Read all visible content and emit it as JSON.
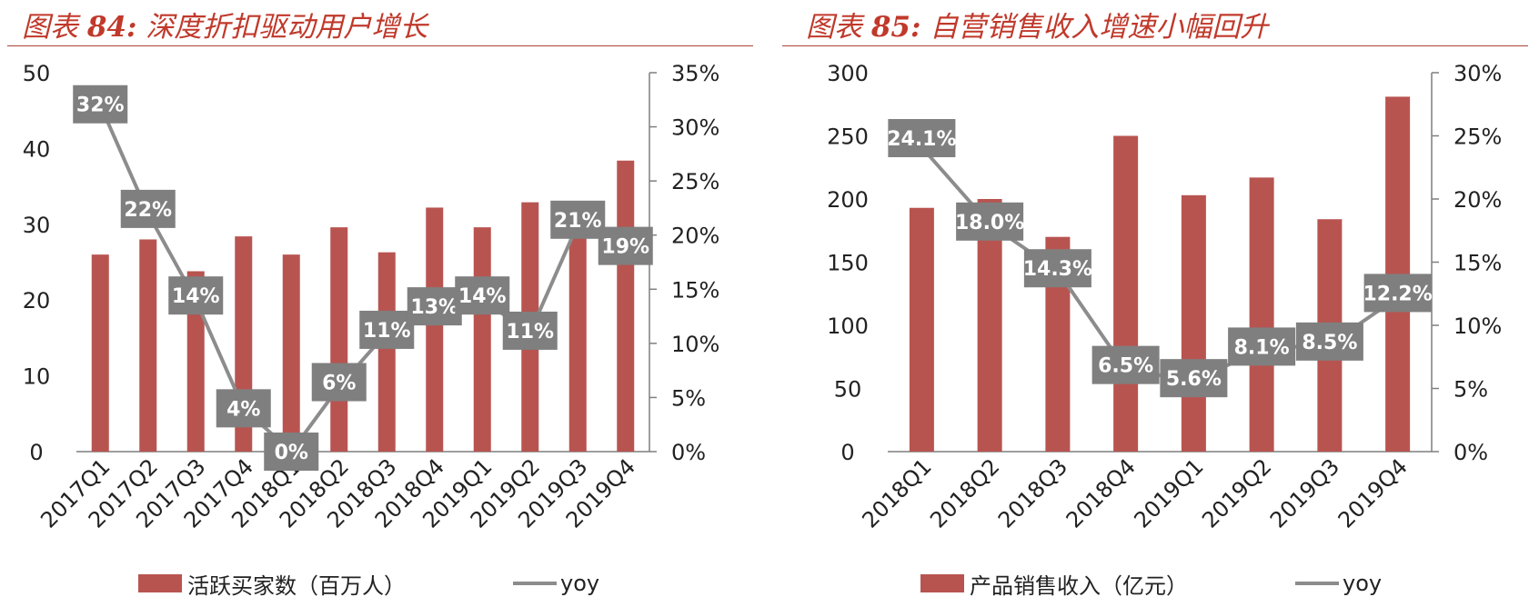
{
  "colors": {
    "bar": "#B85450",
    "line": "#8C8C8C",
    "label_bg": "#7F7F7F",
    "label_text": "#FFFFFF",
    "title": "#C0392B",
    "axis": "#7F7F7F"
  },
  "panels": [
    {
      "title_prefix": "图表 ",
      "title_num": "84:",
      "title_text": " 深度折扣驱动用户增长",
      "legend_bar": "活跃买家数（百万人）",
      "legend_line": "yoy"
    },
    {
      "title_prefix": "图表 ",
      "title_num": "85:",
      "title_text": " 自营销售收入增速小幅回升",
      "legend_bar": "产品销售收入（亿元）",
      "legend_line": "yoy"
    }
  ],
  "chart_data": [
    {
      "type": "bar",
      "categories": [
        "2017Q1",
        "2017Q2",
        "2017Q3",
        "2017Q4",
        "2018Q1",
        "2018Q2",
        "2018Q3",
        "2018Q4",
        "2019Q1",
        "2019Q2",
        "2019Q3",
        "2019Q4"
      ],
      "series": [
        {
          "name": "活跃买家数（百万人）",
          "type": "bar",
          "axis": "left",
          "values": [
            26.0,
            28.0,
            23.8,
            28.4,
            26.0,
            29.6,
            26.3,
            32.2,
            29.6,
            32.9,
            29.0,
            38.4
          ]
        },
        {
          "name": "yoy",
          "type": "line",
          "axis": "right",
          "values": [
            0.32,
            0.22,
            0.14,
            0.04,
            0.0,
            0.06,
            0.11,
            0.13,
            0.14,
            0.11,
            0.21,
            0.19
          ],
          "labels": [
            "32%",
            "22%",
            "14%",
            "4%",
            "0%",
            "6%",
            "11%",
            "13%",
            "14%",
            "11%",
            "21%",
            "19%"
          ]
        }
      ],
      "left_axis": {
        "min": 0,
        "max": 50,
        "ticks": [
          "0",
          "10",
          "20",
          "30",
          "40",
          "50"
        ]
      },
      "right_axis": {
        "min": 0,
        "max": 0.35,
        "ticks": [
          "0%",
          "5%",
          "10%",
          "15%",
          "20%",
          "25%",
          "30%",
          "35%"
        ]
      },
      "grid": false,
      "legend": "bottom"
    },
    {
      "type": "bar",
      "categories": [
        "2018Q1",
        "2018Q2",
        "2018Q3",
        "2018Q4",
        "2019Q1",
        "2019Q2",
        "2019Q3",
        "2019Q4"
      ],
      "series": [
        {
          "name": "产品销售收入（亿元）",
          "type": "bar",
          "axis": "left",
          "values": [
            193,
            200,
            170,
            250,
            203,
            217,
            184,
            281
          ]
        },
        {
          "name": "yoy",
          "type": "line",
          "axis": "right",
          "values": [
            0.241,
            0.18,
            0.143,
            0.065,
            0.056,
            0.081,
            0.085,
            0.122
          ],
          "labels": [
            "24.1%",
            "18.0%",
            "14.3%",
            "6.5%",
            "5.6%",
            "8.1%",
            "8.5%",
            "12.2%"
          ]
        }
      ],
      "left_axis": {
        "min": 0,
        "max": 300,
        "ticks": [
          "0",
          "50",
          "100",
          "150",
          "200",
          "250",
          "300"
        ]
      },
      "right_axis": {
        "min": 0,
        "max": 0.3,
        "ticks": [
          "0%",
          "5%",
          "10%",
          "15%",
          "20%",
          "25%",
          "30%"
        ]
      },
      "grid": false,
      "legend": "bottom"
    }
  ]
}
